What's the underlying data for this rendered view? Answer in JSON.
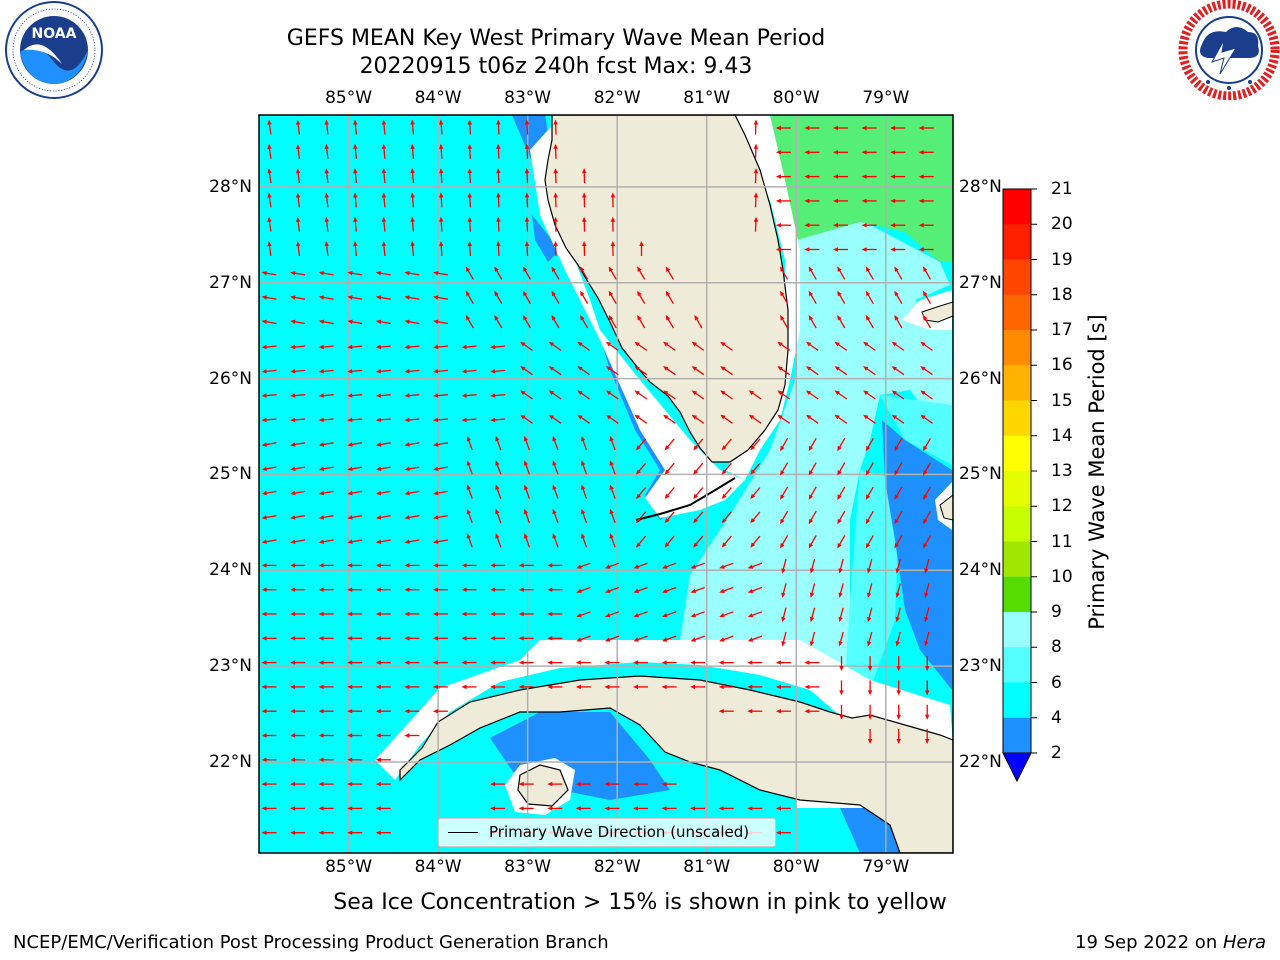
{
  "title": {
    "line1": "GEFS MEAN Key West Primary Wave Mean Period",
    "line2": "20220915 t06z 240h fcst   Max: 9.43"
  },
  "logos": {
    "left": {
      "text": "NOAA",
      "ring_text": "NATIONAL OCEANIC AND ATMOSPHERIC ADMINISTRATION · U.S. DEPARTMENT OF COMMERCE"
    },
    "right": {
      "ring_text": "NATIONAL WEATHER SERVICE"
    }
  },
  "map": {
    "lon_range": [
      -86.0,
      -78.25
    ],
    "lat_range": [
      21.05,
      28.75
    ],
    "lon_ticks": [
      {
        "value": -85,
        "label": "85°W"
      },
      {
        "value": -84,
        "label": "84°W"
      },
      {
        "value": -83,
        "label": "83°W"
      },
      {
        "value": -82,
        "label": "82°W"
      },
      {
        "value": -81,
        "label": "81°W"
      },
      {
        "value": -80,
        "label": "80°W"
      },
      {
        "value": -79,
        "label": "79°W"
      }
    ],
    "lat_ticks": [
      {
        "value": 28,
        "label": "28°N"
      },
      {
        "value": 27,
        "label": "27°N"
      },
      {
        "value": 26,
        "label": "26°N"
      },
      {
        "value": 25,
        "label": "25°N"
      },
      {
        "value": 24,
        "label": "24°N"
      },
      {
        "value": 23,
        "label": "23°N"
      },
      {
        "value": 22,
        "label": "22°N"
      }
    ],
    "colors": {
      "period_6_8": "#00ffff",
      "period_8_9": "#99ffff",
      "period_7_8": "#55ffff",
      "period_2_4": "#1e90ff",
      "period_9_10": "#55ee77",
      "land": "#eeebd9",
      "arrows": "#ff0000",
      "grid": "#b0b0b0"
    },
    "legend_label": "Primary Wave Direction (unscaled)"
  },
  "colorbar": {
    "label": "Primary Wave Mean Period [s]",
    "ticks": [
      "21",
      "20",
      "19",
      "18",
      "17",
      "16",
      "15",
      "14",
      "13",
      "12",
      "11",
      "10",
      "9",
      "8",
      "6",
      "4",
      "2"
    ],
    "bands": [
      "#ff0000",
      "#ff2000",
      "#ff4500",
      "#ff6600",
      "#ff8c00",
      "#ffb300",
      "#ffd700",
      "#ffff00",
      "#e6ff00",
      "#c8ff00",
      "#a0e600",
      "#55dd00",
      "#00cc00",
      "#00ee00",
      "#55ee77",
      "#99ffff",
      "#55ffff",
      "#00ffff",
      "#1e90ff"
    ],
    "extend_color": "#0000ff"
  },
  "footer": {
    "note": "Sea Ice Concentration > 15% is shown in pink to yellow",
    "left": "NCEP/EMC/Verification Post Processing Product Generation Branch",
    "right_prefix": "19 Sep 2022 on ",
    "right_host": "Hera"
  }
}
